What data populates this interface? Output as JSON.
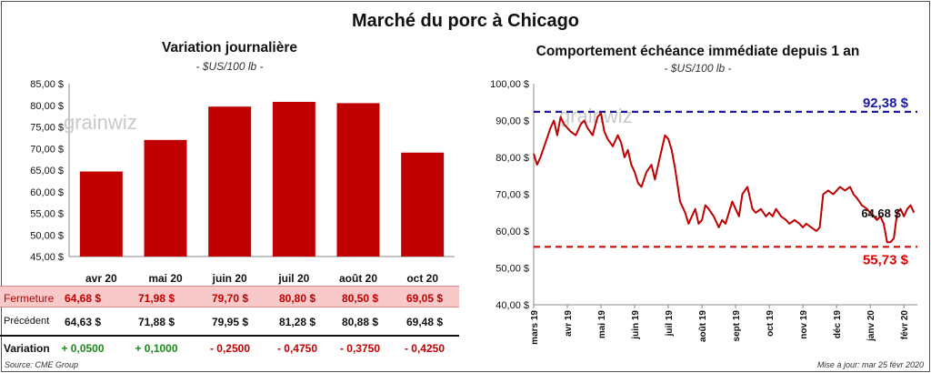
{
  "title": "Marché du porc à Chicago",
  "watermark": "grainwiz",
  "left_panel": {
    "title": "Variation  journalière",
    "subtitle": "- $US/100 lb -"
  },
  "right_panel": {
    "title": "Comportement  échéance immédiate depuis 1 an",
    "subtitle": "- $US/100 lb -"
  },
  "table": {
    "close_label": "Fermeture",
    "prev_label": "Précédent",
    "var_label": "Variation",
    "close": [
      "64,68  $",
      "71,98  $",
      "79,70  $",
      "80,80  $",
      "80,50  $",
      "69,05  $"
    ],
    "prev": [
      "64,63  $",
      "71,88  $",
      "79,95  $",
      "81,28  $",
      "80,88  $",
      "69,48  $"
    ],
    "var": [
      "+ 0,0500",
      "+ 0,1000",
      "- 0,2500",
      "- 0,4750",
      "- 0,3750",
      "- 0,4250"
    ]
  },
  "footer": {
    "source": "Source: CME Group",
    "updated": "Mise à jour: mar 25 févr 2020"
  },
  "colors": {
    "bar": "#c00000",
    "line": "#c00000",
    "high_line": "#1a1aa6",
    "low_line": "#e00000"
  },
  "chart_data": [
    {
      "type": "bar",
      "categories": [
        "avr 20",
        "mai 20",
        "juin 20",
        "juil 20",
        "août 20",
        "oct 20"
      ],
      "values": [
        64.68,
        71.98,
        79.7,
        80.8,
        80.5,
        69.05
      ],
      "ylim": [
        45,
        85
      ],
      "yticks": [
        "45,00 $",
        "50,00 $",
        "55,00 $",
        "60,00 $",
        "65,00 $",
        "70,00 $",
        "75,00 $",
        "80,00 $",
        "85,00 $"
      ],
      "ytick_values": [
        45,
        50,
        55,
        60,
        65,
        70,
        75,
        80,
        85
      ],
      "grid": false
    },
    {
      "type": "line",
      "x_labels": [
        "mars 19",
        "avr 19",
        "mai 19",
        "juin 19",
        "juil 19",
        "août 19",
        "sept 19",
        "oct 19",
        "nov 19",
        "déc 19",
        "janv 20",
        "févr 20"
      ],
      "ylim": [
        40,
        100
      ],
      "yticks": [
        "40,00 $",
        "50,00 $",
        "60,00 $",
        "70,00 $",
        "80,00 $",
        "90,00 $",
        "100,00 $"
      ],
      "ytick_values": [
        40,
        50,
        60,
        70,
        80,
        90,
        100
      ],
      "x_month_index": [
        0,
        0.1,
        0.2,
        0.35,
        0.5,
        0.6,
        0.7,
        0.8,
        0.9,
        1.0,
        1.1,
        1.25,
        1.4,
        1.5,
        1.6,
        1.75,
        1.9,
        2.0,
        2.1,
        2.2,
        2.35,
        2.5,
        2.6,
        2.7,
        2.8,
        2.9,
        3.0,
        3.1,
        3.2,
        3.35,
        3.5,
        3.6,
        3.75,
        3.9,
        4.0,
        4.1,
        4.2,
        4.35,
        4.5,
        4.6,
        4.7,
        4.8,
        4.9,
        5.0,
        5.1,
        5.2,
        5.35,
        5.5,
        5.6,
        5.7,
        5.8,
        5.9,
        6.0,
        6.1,
        6.2,
        6.35,
        6.5,
        6.6,
        6.75,
        6.9,
        7.0,
        7.1,
        7.2,
        7.35,
        7.5,
        7.6,
        7.75,
        7.9,
        8.0,
        8.1,
        8.25,
        8.4,
        8.5,
        8.6,
        8.75,
        8.9,
        9.0,
        9.1,
        9.25,
        9.4,
        9.5,
        9.6,
        9.75,
        9.9,
        10.0,
        10.1,
        10.2,
        10.3,
        10.4,
        10.5,
        10.6,
        10.7,
        10.8,
        10.9,
        11.0,
        11.1,
        11.2,
        11.3
      ],
      "values": [
        81,
        78,
        80,
        84,
        88,
        90,
        86,
        91,
        89,
        88,
        87,
        86,
        89,
        90,
        88,
        86,
        91,
        92,
        87,
        85,
        83,
        86,
        84,
        80,
        82,
        78,
        76,
        73,
        72,
        76,
        78,
        74,
        80,
        86,
        85,
        82,
        77,
        68,
        65,
        62,
        64,
        66,
        62,
        63,
        67,
        66,
        64,
        61,
        63,
        62,
        65,
        68,
        66,
        64,
        70,
        72,
        66,
        65,
        66,
        64,
        65,
        64,
        66,
        64,
        63,
        62,
        63,
        62,
        61,
        62,
        61,
        60,
        61,
        70,
        71,
        70,
        71,
        72,
        71,
        72,
        70,
        69,
        67,
        66,
        65,
        64,
        63,
        64,
        62,
        57,
        57,
        58,
        65,
        66,
        64,
        66,
        67,
        65
      ],
      "high": 92.38,
      "high_label": "92,38 $",
      "low": 55.73,
      "low_label": "55,73 $",
      "last": 64.68,
      "last_label": "64,68 $",
      "grid": false
    }
  ]
}
